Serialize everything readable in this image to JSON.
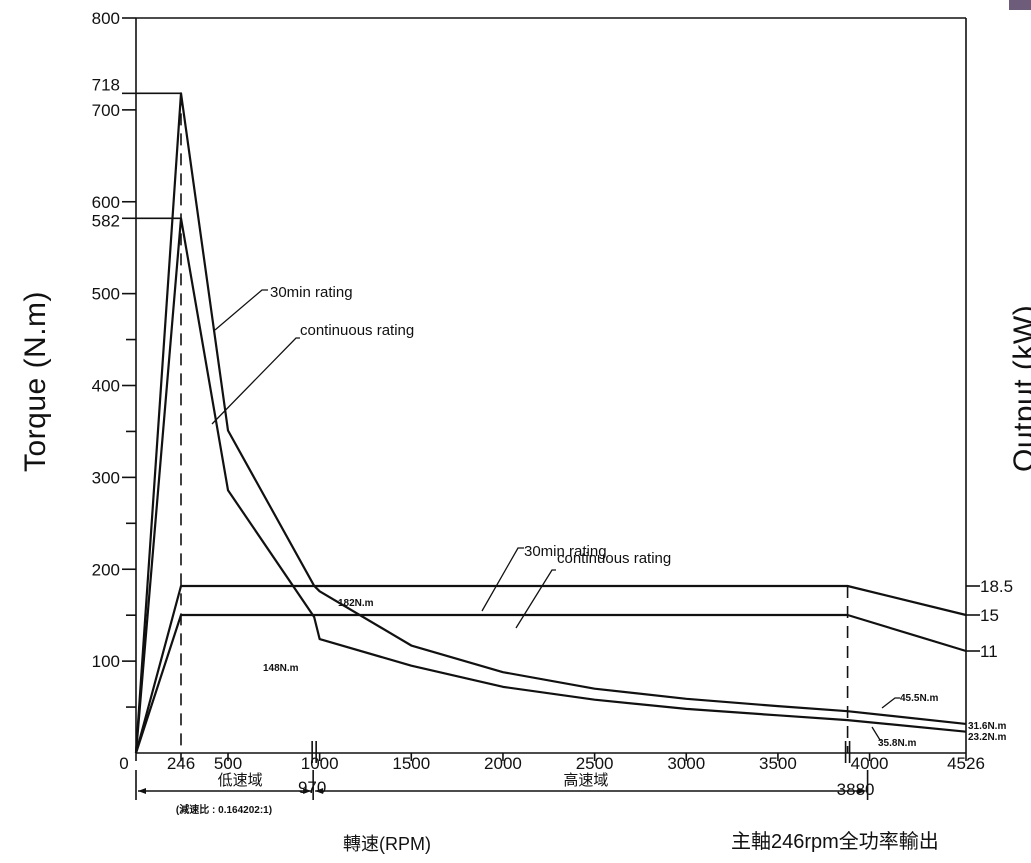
{
  "chart_data": {
    "type": "line",
    "ylabel_left": "Torque (N.m)",
    "ylabel_right": "Output (kW)",
    "xlabel": "轉速(RPM)",
    "footnote": "主軸246rpm全功率輸出",
    "gear_ratio_note": "(減速比 : 0.164202:1)",
    "x_ticks": [
      "0",
      "246",
      "500",
      "1000",
      "1500",
      "2000",
      "2500",
      "3000",
      "3500",
      "4000",
      "4526"
    ],
    "x_special_labels": [
      "970",
      "3880"
    ],
    "y_left_ticks": [
      "100",
      "200",
      "300",
      "400",
      "500",
      "600",
      "700",
      "800"
    ],
    "y_left_special": [
      "718",
      "582"
    ],
    "y_right_ticks": [
      "18.5",
      "15",
      "11"
    ],
    "regions": [
      {
        "label": "低速域",
        "from": 0,
        "to": 970
      },
      {
        "label": "高速域",
        "from": 970,
        "to": 3880
      }
    ],
    "torque_series": [
      {
        "name": "30min rating",
        "x": [
          0,
          246,
          246,
          500,
          970,
          1000,
          1500,
          2000,
          2500,
          3000,
          3500,
          3880,
          4526
        ],
        "y": [
          0,
          718,
          718,
          351,
          182,
          176,
          117,
          88,
          70,
          59,
          51,
          45.5,
          31.6
        ]
      },
      {
        "name": "continuous rating",
        "x": [
          0,
          246,
          246,
          500,
          970,
          1000,
          1500,
          2000,
          2500,
          3000,
          3500,
          3880,
          4526
        ],
        "y": [
          0,
          582,
          582,
          286,
          148,
          124,
          95,
          72,
          58,
          48,
          41,
          35.8,
          23.2
        ]
      }
    ],
    "power_series": [
      {
        "name": "30min rating",
        "x": [
          0,
          246,
          3880,
          4526
        ],
        "y": [
          0,
          18.5,
          18.5,
          15
        ]
      },
      {
        "name": "continuous rating",
        "x": [
          0,
          246,
          3880,
          4526
        ],
        "y": [
          0,
          15,
          15,
          11
        ]
      }
    ],
    "annotations": {
      "torque_30min": "30min rating",
      "torque_cont": "continuous rating",
      "power_30min": "30min rating",
      "power_cont": "continuous rating",
      "p182": "182N.m",
      "p148": "148N.m",
      "p455": "45.5N.m",
      "p358": "35.8N.m",
      "p316": "31.6N.m",
      "p232": "23.2N.m"
    }
  }
}
